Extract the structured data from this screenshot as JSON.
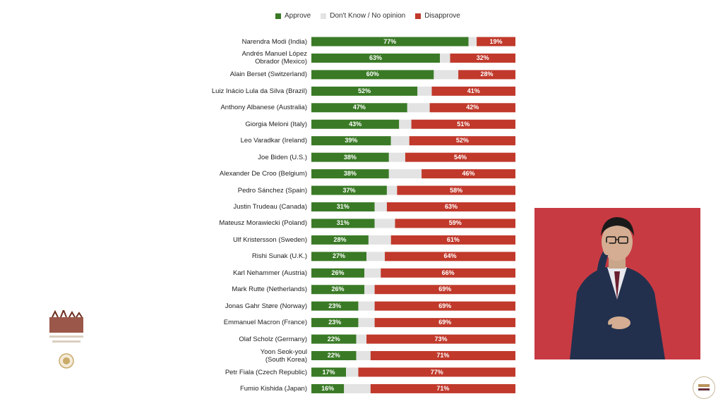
{
  "chart_data": {
    "type": "bar",
    "stacked": true,
    "orientation": "horizontal",
    "legend": [
      {
        "name": "Approve",
        "color": "#3a7a26"
      },
      {
        "name": "Don't Know / No opinion",
        "color": "#e3e3e3"
      },
      {
        "name": "Disapprove",
        "color": "#c0392b"
      }
    ],
    "legend_position": "top",
    "categories": [
      "Narendra Modi (India)",
      "Andrés Manuel López\nObrador (Mexico)",
      "Alain Berset (Switzerland)",
      "Luiz Inácio Lula da Silva (Brazil)",
      "Anthony Albanese (Australia)",
      "Giorgia Meloni (Italy)",
      "Leo Varadkar (Ireland)",
      "Joe Biden (U.S.)",
      "Alexander De Croo (Belgium)",
      "Pedro Sánchez (Spain)",
      "Justin Trudeau (Canada)",
      "Mateusz Morawiecki (Poland)",
      "Ulf Kristersson (Sweden)",
      "Rishi Sunak (U.K.)",
      "Karl Nehammer (Austria)",
      "Mark Rutte (Netherlands)",
      "Jonas Gahr Støre (Norway)",
      "Emmanuel Macron (France)",
      "Olaf Scholz (Germany)",
      "Yoon Seok-youl\n(South Korea)",
      "Petr Fiala (Czech Republic)",
      "Fumio Kishida (Japan)"
    ],
    "series": [
      {
        "name": "Approve",
        "values": [
          77,
          63,
          60,
          52,
          47,
          43,
          39,
          38,
          38,
          37,
          31,
          31,
          28,
          27,
          26,
          26,
          23,
          23,
          22,
          22,
          17,
          16
        ]
      },
      {
        "name": "Don't Know / No opinion",
        "values": [
          4,
          5,
          12,
          7,
          11,
          6,
          9,
          8,
          16,
          5,
          6,
          10,
          11,
          9,
          8,
          5,
          8,
          8,
          5,
          7,
          6,
          13
        ]
      },
      {
        "name": "Disapprove",
        "values": [
          19,
          32,
          28,
          41,
          42,
          51,
          52,
          54,
          46,
          58,
          63,
          59,
          61,
          64,
          66,
          69,
          69,
          69,
          73,
          71,
          77,
          71
        ]
      }
    ],
    "data_labels": [
      [
        "77%",
        "19%"
      ],
      [
        "63%",
        "32%"
      ],
      [
        "60%",
        "28%"
      ],
      [
        "52%",
        "41%"
      ],
      [
        "47%",
        "42%"
      ],
      [
        "43%",
        "51%"
      ],
      [
        "39%",
        "52%"
      ],
      [
        "38%",
        "54%"
      ],
      [
        "38%",
        "46%"
      ],
      [
        "37%",
        "58%"
      ],
      [
        "31%",
        "63%"
      ],
      [
        "31%",
        "59%"
      ],
      [
        "28%",
        "61%"
      ],
      [
        "27%",
        "64%"
      ],
      [
        "26%",
        "66%"
      ],
      [
        "26%",
        "69%"
      ],
      [
        "23%",
        "69%"
      ],
      [
        "23%",
        "69%"
      ],
      [
        "22%",
        "73%"
      ],
      [
        "22%",
        "71%"
      ],
      [
        "17%",
        "77%"
      ],
      [
        "16%",
        "71%"
      ]
    ],
    "xlim": [
      0,
      100
    ],
    "grid": false
  },
  "colors": {
    "approve": "#3a7a26",
    "neutral": "#e3e3e3",
    "disapprove": "#c0392b",
    "panel_bg": "#c83a42"
  },
  "video_panel": {
    "description_icon": "sign-language-interpreter"
  }
}
